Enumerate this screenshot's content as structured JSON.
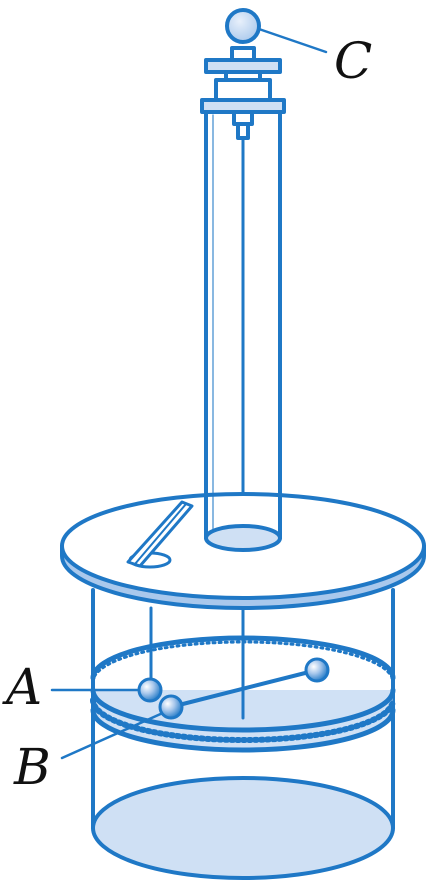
{
  "labels": {
    "a": "A",
    "b": "B",
    "c": "C"
  },
  "colors": {
    "outline": "#1f78c6",
    "fill_light": "#cfe0f4",
    "fill_mid": "#a9c8ec",
    "background": "#ffffff",
    "label_text": "#111111",
    "ball_highlight": "#ffffff"
  }
}
